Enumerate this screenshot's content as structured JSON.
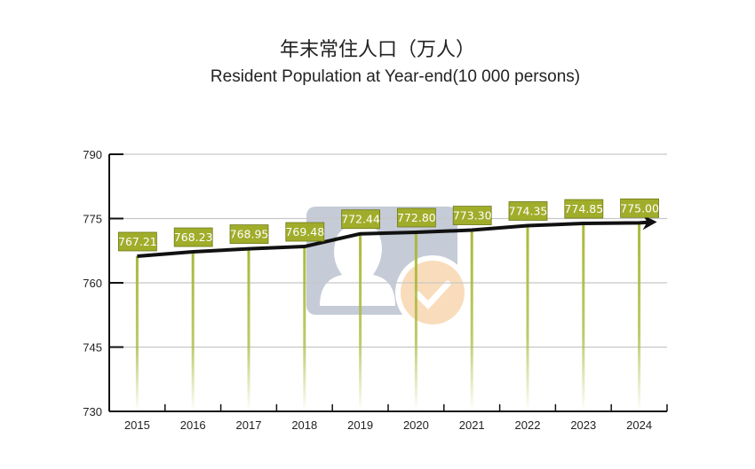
{
  "chart_data": {
    "type": "line",
    "title": "年末常住人口（万人）",
    "subtitle": "Resident Population at Year-end(10 000 persons)",
    "xlabel": "",
    "ylabel": "",
    "categories": [
      "2015",
      "2016",
      "2017",
      "2018",
      "2019",
      "2020",
      "2021",
      "2022",
      "2023",
      "2024"
    ],
    "values": [
      767.21,
      768.23,
      768.95,
      769.48,
      772.44,
      772.8,
      773.3,
      774.35,
      774.85,
      775.0
    ],
    "value_labels": [
      "767.21",
      "768.23",
      "768.95",
      "769.48",
      "772.44",
      "772.80",
      "773.30",
      "774.35",
      "774.85",
      "775.00"
    ],
    "ylim": [
      730,
      790
    ],
    "yticks": [
      "730",
      "745",
      "760",
      "775",
      "790"
    ],
    "grid": true,
    "legend": "none",
    "colors": {
      "label_box": "#a0ad2a",
      "stem": "#a9b83a",
      "line": "#111111",
      "grid": "#c8c8c8"
    }
  }
}
